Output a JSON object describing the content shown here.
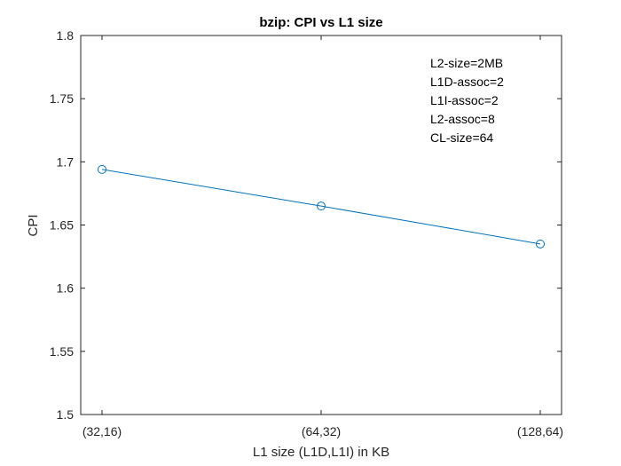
{
  "chart_data": {
    "type": "line",
    "title": "bzip: CPI vs L1 size",
    "xlabel": "L1 size (L1D,L1I) in KB",
    "ylabel": "CPI",
    "categories": [
      "(32,16)",
      "(64,32)",
      "(128,64)"
    ],
    "series": [
      {
        "name": "CPI",
        "values": [
          1.694,
          1.665,
          1.635
        ],
        "color": "#0072BD",
        "marker": "circle"
      }
    ],
    "ylim": [
      1.5,
      1.8
    ],
    "yticks": [
      1.5,
      1.55,
      1.6,
      1.65,
      1.7,
      1.75,
      1.8
    ],
    "ytick_labels": [
      "1.5",
      "1.55",
      "1.6",
      "1.65",
      "1.7",
      "1.75",
      "1.8"
    ],
    "grid": false,
    "annotations": [
      "L2-size=2MB",
      "L1D-assoc=2",
      "L1I-assoc=2",
      "L2-assoc=8",
      "CL-size=64"
    ]
  }
}
